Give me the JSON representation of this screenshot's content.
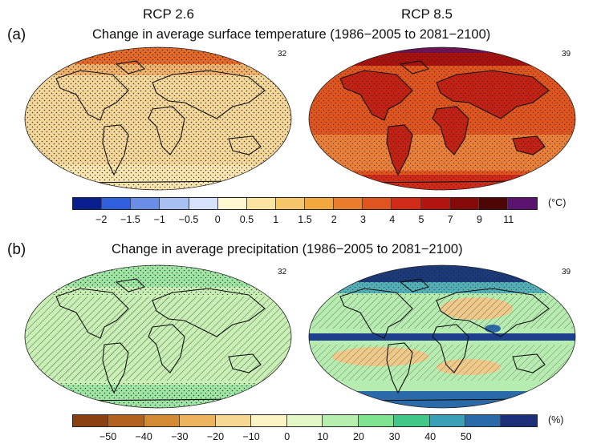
{
  "columns": {
    "left": "RCP 2.6",
    "right": "RCP 8.5"
  },
  "panel_a": {
    "letter": "(a)",
    "title": "Change in average surface temperature (1986−2005 to 2081−2100)",
    "left_count": "32",
    "right_count": "39",
    "unit": "(°C)",
    "ticks": [
      "−2",
      "−1.5",
      "−1",
      "−0.5",
      "0",
      "0.5",
      "1",
      "1.5",
      "2",
      "3",
      "4",
      "5",
      "7",
      "9",
      "11"
    ],
    "colors": [
      "#0a1f8f",
      "#2f5fdc",
      "#6a8ee8",
      "#a9c0f2",
      "#d6e2fb",
      "#fff7cf",
      "#fbe3a0",
      "#f5c76a",
      "#f1a83c",
      "#ea7d2c",
      "#e0551f",
      "#d22a18",
      "#b4140f",
      "#860a0a",
      "#4e0505",
      "#5a1470"
    ],
    "left_map": {
      "base": "#f6d79a",
      "polar": "#ee9a4e",
      "arctic": "#e56a2a",
      "antarctic": "#f9e6b0"
    },
    "right_map": {
      "base": "#e0551f",
      "polar": "#a8120e",
      "land": "#c42115",
      "ocean": "#ea7f3a"
    }
  },
  "panel_b": {
    "letter": "(b)",
    "title": "Change in average precipitation (1986−2005 to 2081−2100)",
    "left_count": "32",
    "right_count": "39",
    "unit": "(%)",
    "ticks": [
      "−50",
      "−40",
      "−30",
      "−20",
      "−10",
      "0",
      "10",
      "20",
      "30",
      "40",
      "50"
    ],
    "colors": [
      "#8b4012",
      "#b3621d",
      "#d28a34",
      "#ecb45f",
      "#f6d892",
      "#fcf3c4",
      "#e2f6c6",
      "#b6eeb0",
      "#7fe48f",
      "#43c789",
      "#3aa0b8",
      "#2b6aa8",
      "#1c2f78"
    ],
    "left_map": {
      "base": "#c8efb4",
      "polar": "#9fe6a4"
    },
    "right_map": {
      "base": "#b7ecb0",
      "polar": "#1c3a7a",
      "wet_band": "#1d3f8c",
      "dry": "#eec98a"
    }
  }
}
